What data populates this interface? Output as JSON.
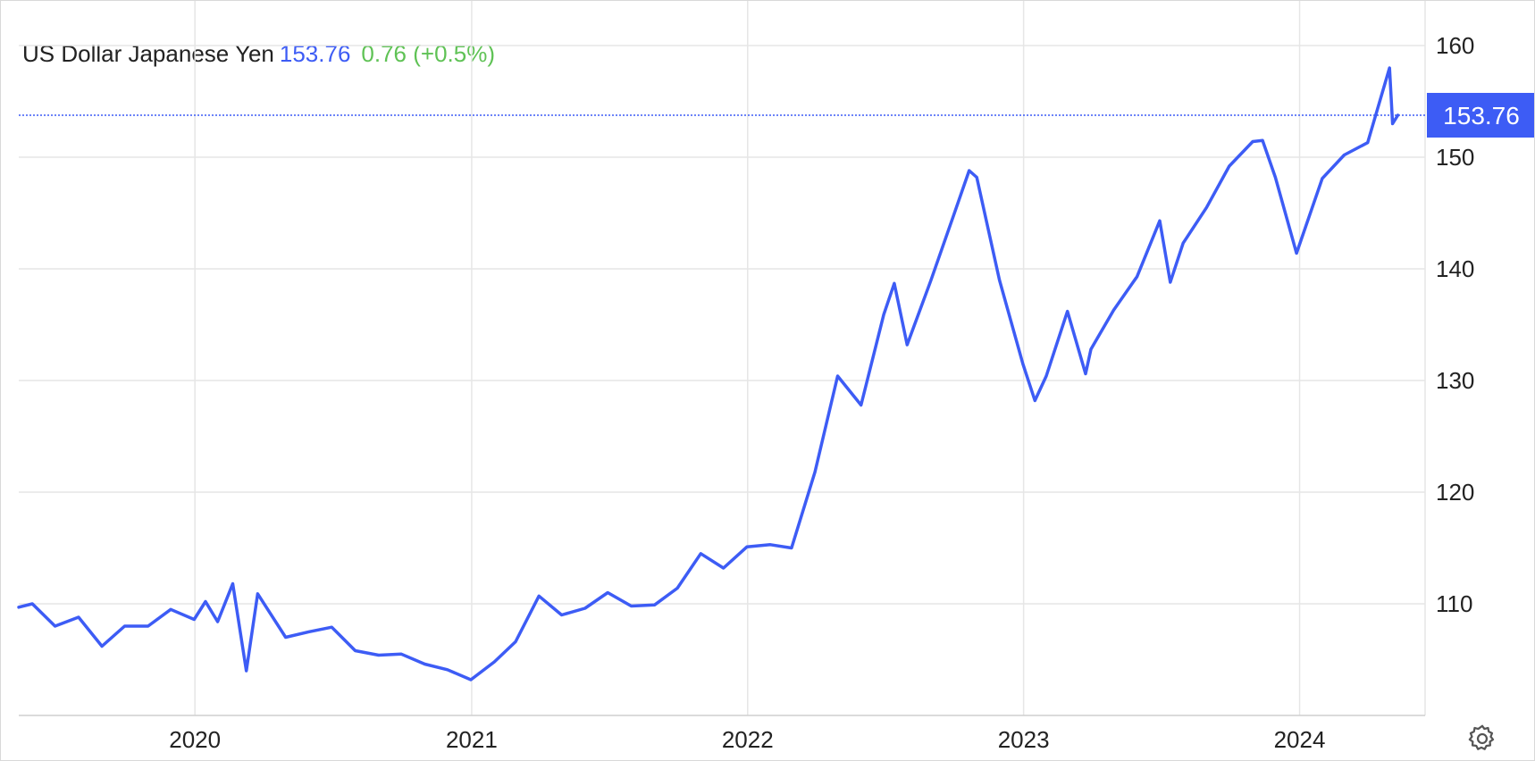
{
  "header": {
    "name": "US Dollar Japanese Yen",
    "price": "153.76",
    "change": "0.76 (+0.5%)"
  },
  "price_marker": "153.76",
  "colors": {
    "line": "#3d5cf5",
    "change_positive": "#5fc255",
    "grid": "#e6e6e6",
    "marker_bg": "#3d5cf5"
  },
  "settings_icon": "gear-icon",
  "chart_data": {
    "type": "line",
    "title": "US Dollar Japanese Yen",
    "xlabel": "",
    "ylabel": "",
    "ylim": [
      100,
      164
    ],
    "xlim": [
      "2019-05-13",
      "2024-06-15"
    ],
    "x_ticks": [
      "2020",
      "2021",
      "2022",
      "2023",
      "2024"
    ],
    "y_ticks": [
      110,
      120,
      130,
      140,
      150,
      160
    ],
    "grid": true,
    "last_value": 153.76,
    "series": [
      {
        "name": "",
        "x": [
          "2019-05-13",
          "2019-05-31",
          "2019-06-30",
          "2019-07-31",
          "2019-08-31",
          "2019-09-30",
          "2019-10-31",
          "2019-11-30",
          "2019-12-31",
          "2020-01-15",
          "2020-01-31",
          "2020-02-20",
          "2020-03-09",
          "2020-03-24",
          "2020-04-30",
          "2020-05-31",
          "2020-06-30",
          "2020-07-31",
          "2020-08-31",
          "2020-09-30",
          "2020-10-31",
          "2020-11-30",
          "2020-12-31",
          "2021-01-31",
          "2021-02-28",
          "2021-03-31",
          "2021-04-30",
          "2021-05-31",
          "2021-06-30",
          "2021-07-31",
          "2021-08-31",
          "2021-09-30",
          "2021-10-31",
          "2021-11-30",
          "2021-12-31",
          "2022-01-31",
          "2022-02-28",
          "2022-03-31",
          "2022-04-30",
          "2022-05-31",
          "2022-06-30",
          "2022-07-14",
          "2022-07-31",
          "2022-08-31",
          "2022-09-30",
          "2022-10-21",
          "2022-10-31",
          "2022-11-30",
          "2022-12-31",
          "2023-01-16",
          "2023-01-31",
          "2023-02-28",
          "2023-03-24",
          "2023-03-31",
          "2023-04-30",
          "2023-05-31",
          "2023-06-30",
          "2023-07-14",
          "2023-07-31",
          "2023-08-31",
          "2023-09-30",
          "2023-10-31",
          "2023-11-13",
          "2023-11-30",
          "2023-12-28",
          "2024-01-31",
          "2024-02-29",
          "2024-03-31",
          "2024-04-29",
          "2024-05-03",
          "2024-05-10"
        ],
        "y": [
          109.7,
          110.0,
          108.0,
          108.8,
          106.2,
          108.0,
          108.0,
          109.5,
          108.6,
          110.2,
          108.4,
          111.8,
          104.0,
          110.9,
          107.0,
          107.5,
          107.9,
          105.8,
          105.4,
          105.5,
          104.6,
          104.1,
          103.2,
          104.8,
          106.6,
          110.7,
          109.0,
          109.6,
          111.0,
          109.8,
          109.9,
          111.4,
          114.5,
          113.2,
          115.1,
          115.3,
          115.0,
          121.8,
          130.4,
          127.8,
          135.9,
          138.7,
          133.2,
          138.9,
          144.7,
          148.8,
          148.2,
          139.0,
          131.5,
          128.2,
          130.4,
          136.2,
          130.6,
          132.8,
          136.3,
          139.3,
          144.3,
          138.8,
          142.3,
          145.5,
          149.2,
          151.4,
          151.5,
          148.2,
          141.4,
          148.1,
          150.2,
          151.3,
          158.0,
          153.0,
          153.76
        ]
      }
    ]
  }
}
